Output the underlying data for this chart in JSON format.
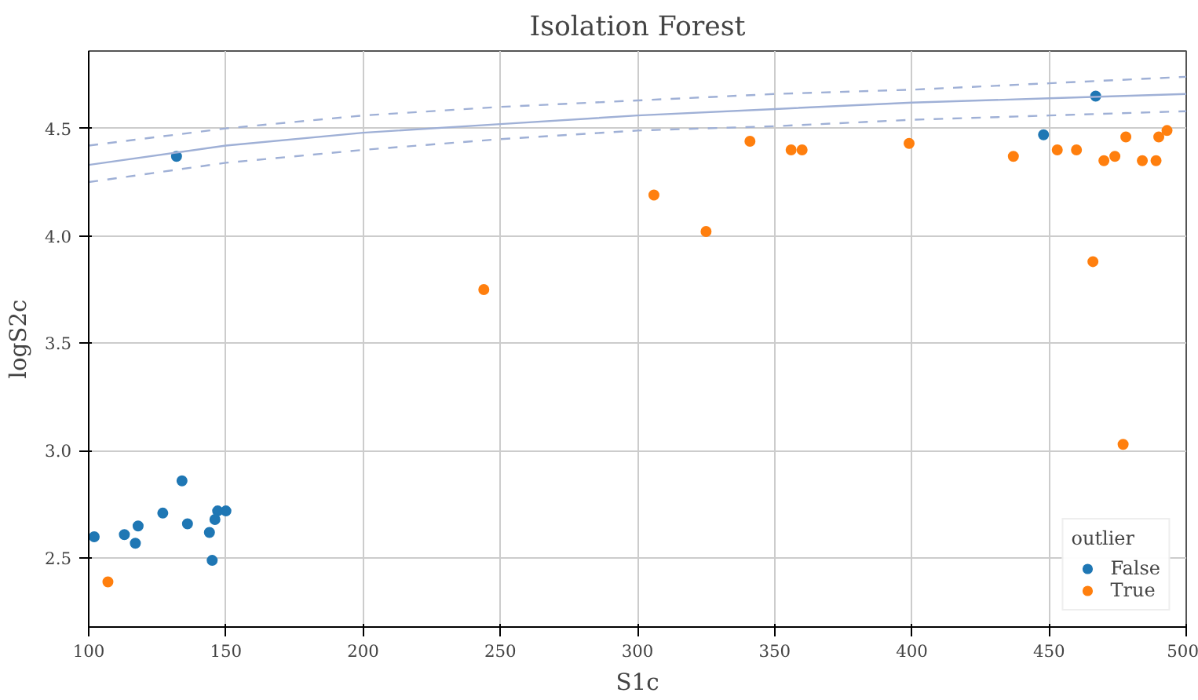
{
  "chart_data": {
    "type": "scatter",
    "title": "Isolation Forest",
    "xlabel": "S1c",
    "ylabel": "logS2c",
    "legend_title": "outlier",
    "xlim": [
      100,
      500
    ],
    "ylim": [
      2.18,
      4.86
    ],
    "xticks": [
      100,
      150,
      200,
      250,
      300,
      350,
      400,
      450,
      500
    ],
    "yticks": [
      2.5,
      {
        "value": 3.0,
        "label": "3.0"
      },
      3.5,
      {
        "value": 4.0,
        "label": "4.0"
      },
      4.5
    ],
    "grid": true,
    "legend": "bottom right",
    "marker": "circle",
    "series": [
      {
        "name": "False",
        "color": "#1f77b4",
        "x": [
          102,
          113,
          117,
          118,
          127,
          134,
          136,
          144,
          145,
          146,
          147,
          150,
          132,
          448,
          467
        ],
        "values": [
          2.6,
          2.61,
          2.57,
          2.65,
          2.71,
          2.86,
          2.66,
          2.62,
          2.49,
          2.68,
          2.72,
          2.72,
          4.37,
          4.47,
          4.65
        ]
      },
      {
        "name": "True",
        "color": "#ff7f0e",
        "x": [
          107,
          244,
          306,
          325,
          341,
          356,
          360,
          399,
          437,
          453,
          460,
          466,
          470,
          474,
          478,
          477,
          484,
          489,
          490,
          493
        ],
        "values": [
          2.39,
          3.75,
          4.19,
          4.02,
          4.44,
          4.4,
          4.4,
          4.43,
          4.37,
          4.4,
          4.4,
          3.88,
          4.35,
          4.37,
          4.46,
          3.03,
          4.35,
          4.35,
          4.46,
          4.49
        ]
      },
      {
        "type": "line",
        "line_style": "solid",
        "marker": "none",
        "color": "#9fb0d6",
        "x": [
          100,
          150,
          200,
          250,
          300,
          350,
          400,
          450,
          500
        ],
        "values": [
          4.33,
          4.42,
          4.48,
          4.52,
          4.56,
          4.59,
          4.62,
          4.64,
          4.66
        ]
      },
      {
        "type": "line",
        "line_style": "dashed",
        "marker": "none",
        "color": "#9fb0d6",
        "x": [
          100,
          150,
          200,
          250,
          300,
          350,
          400,
          450,
          500
        ],
        "values": [
          4.42,
          4.5,
          4.56,
          4.6,
          4.63,
          4.66,
          4.68,
          4.71,
          4.74
        ]
      },
      {
        "type": "line",
        "line_style": "dashed",
        "marker": "none",
        "color": "#9fb0d6",
        "x": [
          100,
          150,
          200,
          250,
          300,
          350,
          400,
          450,
          500
        ],
        "values": [
          4.25,
          4.34,
          4.4,
          4.45,
          4.49,
          4.51,
          4.54,
          4.56,
          4.58
        ]
      }
    ]
  }
}
